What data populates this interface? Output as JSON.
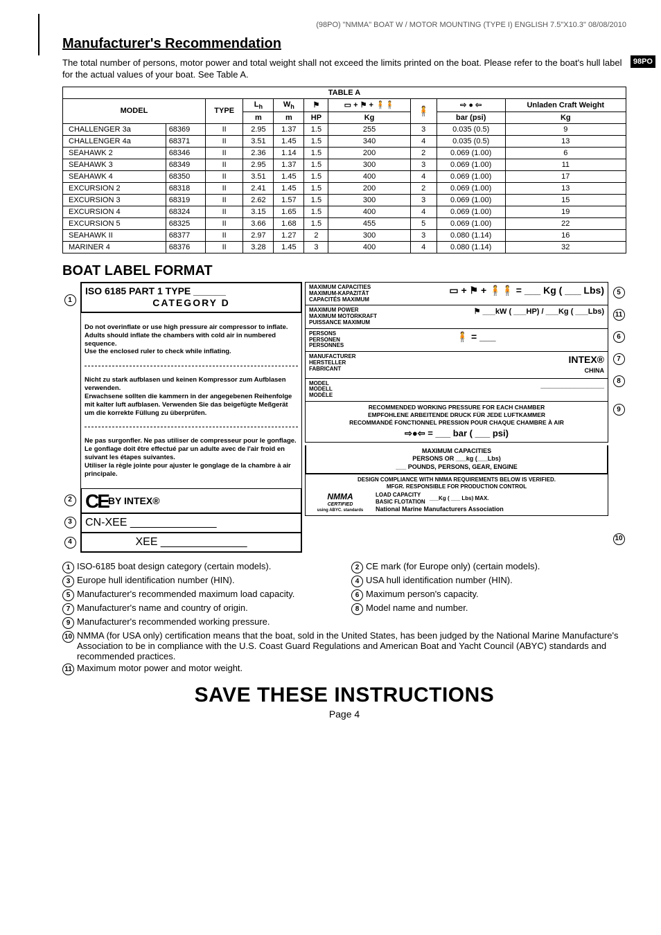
{
  "header": {
    "meta_line": "(98PO)  \"NMMA\" BOAT W / MOTOR MOUNTING (TYPE I)  ENGLISH  7.5\"X10.3\"   08/08/2010",
    "badge": "98PO",
    "title": "Manufacturer's Recommendation",
    "intro": "The total number of persons, motor power and total weight shall not exceed the limits printed on the boat. Please refer to the boat's hull label for the actual values of your boat. See Table A."
  },
  "table": {
    "caption": "TABLE A",
    "head": {
      "model": "MODEL",
      "type": "TYPE",
      "lh": "L",
      "lh_sub": "h",
      "wh": "W",
      "wh_sub": "h",
      "motor_icon": "⚑",
      "weight_icon": "▭ + ⚑ + 🧍🧍",
      "persons_icon": "🧍",
      "pressure_icon": "⇨ ● ⇦",
      "unladen": "Unladen Craft Weight",
      "u_m": "m",
      "u_hp": "HP",
      "u_kg": "Kg",
      "u_bar": "bar (psi)"
    },
    "rows": [
      {
        "name": "CHALLENGER 3a",
        "code": "68369",
        "type": "II",
        "lh": "2.95",
        "wh": "1.37",
        "hp": "1.5",
        "kg": "255",
        "persons": "3",
        "bar": "0.035 (0.5)",
        "unladen": "9"
      },
      {
        "name": "CHALLENGER 4a",
        "code": "68371",
        "type": "II",
        "lh": "3.51",
        "wh": "1.45",
        "hp": "1.5",
        "kg": "340",
        "persons": "4",
        "bar": "0.035 (0.5)",
        "unladen": "13"
      },
      {
        "name": "SEAHAWK 2",
        "code": "68346",
        "type": "II",
        "lh": "2.36",
        "wh": "1.14",
        "hp": "1.5",
        "kg": "200",
        "persons": "2",
        "bar": "0.069 (1.00)",
        "unladen": "6"
      },
      {
        "name": "SEAHAWK 3",
        "code": "68349",
        "type": "II",
        "lh": "2.95",
        "wh": "1.37",
        "hp": "1.5",
        "kg": "300",
        "persons": "3",
        "bar": "0.069 (1.00)",
        "unladen": "11"
      },
      {
        "name": "SEAHAWK 4",
        "code": "68350",
        "type": "II",
        "lh": "3.51",
        "wh": "1.45",
        "hp": "1.5",
        "kg": "400",
        "persons": "4",
        "bar": "0.069 (1.00)",
        "unladen": "17"
      },
      {
        "name": "EXCURSION 2",
        "code": "68318",
        "type": "II",
        "lh": "2.41",
        "wh": "1.45",
        "hp": "1.5",
        "kg": "200",
        "persons": "2",
        "bar": "0.069 (1.00)",
        "unladen": "13"
      },
      {
        "name": "EXCURSION 3",
        "code": "68319",
        "type": "II",
        "lh": "2.62",
        "wh": "1.57",
        "hp": "1.5",
        "kg": "300",
        "persons": "3",
        "bar": "0.069 (1.00)",
        "unladen": "15"
      },
      {
        "name": "EXCURSION 4",
        "code": "68324",
        "type": "II",
        "lh": "3.15",
        "wh": "1.65",
        "hp": "1.5",
        "kg": "400",
        "persons": "4",
        "bar": "0.069 (1.00)",
        "unladen": "19"
      },
      {
        "name": "EXCURSION 5",
        "code": "68325",
        "type": "II",
        "lh": "3.66",
        "wh": "1.68",
        "hp": "1.5",
        "kg": "455",
        "persons": "5",
        "bar": "0.069 (1.00)",
        "unladen": "22"
      },
      {
        "name": "SEAHAWK II",
        "code": "68377",
        "type": "II",
        "lh": "2.97",
        "wh": "1.27",
        "hp": "2",
        "kg": "300",
        "persons": "3",
        "bar": "0.080 (1.14)",
        "unladen": "16"
      },
      {
        "name": "MARINER 4",
        "code": "68376",
        "type": "II",
        "lh": "3.28",
        "wh": "1.45",
        "hp": "3",
        "kg": "400",
        "persons": "4",
        "bar": "0.080 (1.14)",
        "unladen": "32"
      }
    ]
  },
  "label_section": {
    "title": "BOAT LABEL FORMAT",
    "iso_line": "ISO 6185  PART 1  TYPE ______",
    "category": "CATEGORY   D",
    "warn_en": "Do not overinflate or use high pressure air compressor to inflate.\nAdults should inflate the chambers with cold air in numbered sequence.\nUse the enclosed ruler to check while inflating.",
    "warn_de": "Nicht zu stark aufblasen und keinen Kompressor zum Aufblasen verwenden.\nErwachsene sollten die kammern in der angegebenen Reihenfolge mit kalter luft aufblasen. Verwenden Sie das beigefügte Meßgerät um die korrekte Füllung zu überprüfen.",
    "warn_fr": "Ne pas surgonfler. Ne pas utiliser de compresseur pour le gonflage.\nLe gonflage doit être effectué par un adulte avec de l'air froid en suivant les étapes suivantes.\nUtiliser la règle jointe pour ajuster le gonglage de la chambre à air principale.",
    "ce": "CE",
    "by_intex": "BY INTEX®",
    "cn_xee": "CN-XEE  ______________",
    "xee": "XEE   ______________",
    "max_cap": {
      "en": "MAXIMUM CAPACITIES",
      "de": "MAXIMUM-KAPAZITÄT",
      "fr": "CAPACITÉS MAXIMUM"
    },
    "max_cap_val": "▭ + ⚑ + 🧍🧍  = ___ Kg ( ___ Lbs)",
    "max_pow": {
      "en": "MAXIMUM POWER",
      "de": "MAXIMUM MOTORKRAFT",
      "fr": "PUISSANCE MAXIMUM"
    },
    "max_pow_val": "⚑  ___kW ( ___HP) / ___Kg ( ___Lbs)",
    "persons": {
      "en": "PERSONS",
      "de": "PERSONEN",
      "fr": "PERSONNES"
    },
    "persons_val": "🧍 = ___",
    "mfr": {
      "en": "MANUFACTURER",
      "de": "HERSTELLER",
      "fr": "FABRICANT"
    },
    "mfr_val": "INTEX®",
    "mfr_country": "CHINA",
    "model": {
      "en": "MODEL",
      "de": "MODELL",
      "fr": "MODÈLE"
    },
    "model_val": "_______________",
    "pressure": {
      "en": "RECOMMENDED WORKING PRESSURE FOR EACH CHAMBER",
      "de": "EMPFOHLENE ARBEITENDE DRUCK FÜR JEDE LUFTKAMMER",
      "fr": "RECOMMANDÉ FONCTIONNEL PRESSION POUR CHAQUE CHAMBRE À AIR",
      "val": "⇨●⇦     =  ___  bar ( ___ psi)"
    },
    "max_cap2": "MAXIMUM CAPACITIES",
    "cap2_line1": "PERSONS OR ___kg (___Lbs)",
    "cap2_line2": "___ POUNDS, PERSONS, GEAR, ENGINE",
    "nmma_header": "DESIGN COMPLIANCE WITH NMMA REQUIREMENTS BELOW IS VERIFIED.\nMFGR. RESPONSIBLE FOR PRODUCTION CONTROL",
    "nmma_logo": "NMMA",
    "nmma_cert": "CERTIFIED",
    "nmma_std": "using ABYC. standards",
    "load_cap": "LOAD CAPACITY",
    "basic_flot": "BASIC FLOTATION",
    "load_val": "___Kg ( ___ Lbs) MAX.",
    "nmma_assoc": "National Marine Manufacturers Association"
  },
  "legend": [
    {
      "n": "1",
      "t": "ISO-6185 boat design category (certain models)."
    },
    {
      "n": "2",
      "t": "CE mark (for Europe only) (certain models)."
    },
    {
      "n": "3",
      "t": "Europe hull identification number (HIN)."
    },
    {
      "n": "4",
      "t": "USA hull identification number (HIN)."
    },
    {
      "n": "5",
      "t": "Manufacturer's recommended maximum load capacity."
    },
    {
      "n": "6",
      "t": "Maximum person's capacity."
    },
    {
      "n": "7",
      "t": "Manufacturer's name and country of origin."
    },
    {
      "n": "8",
      "t": "Model name and number."
    },
    {
      "n": "9",
      "t": "Manufacturer's recommended working pressure."
    },
    {
      "n": "10",
      "t": "NMMA (for USA only) certification means that the boat, sold in the United States, has been judged by the National Marine Manufacture's Association to be in compliance with the U.S. Coast Guard Regulations and American Boat and Yacht Council (ABYC) standards and recommended practices."
    },
    {
      "n": "11",
      "t": "Maximum motor power and motor weight."
    }
  ],
  "footer": {
    "save": "SAVE THESE INSTRUCTIONS",
    "page": "Page 4"
  }
}
